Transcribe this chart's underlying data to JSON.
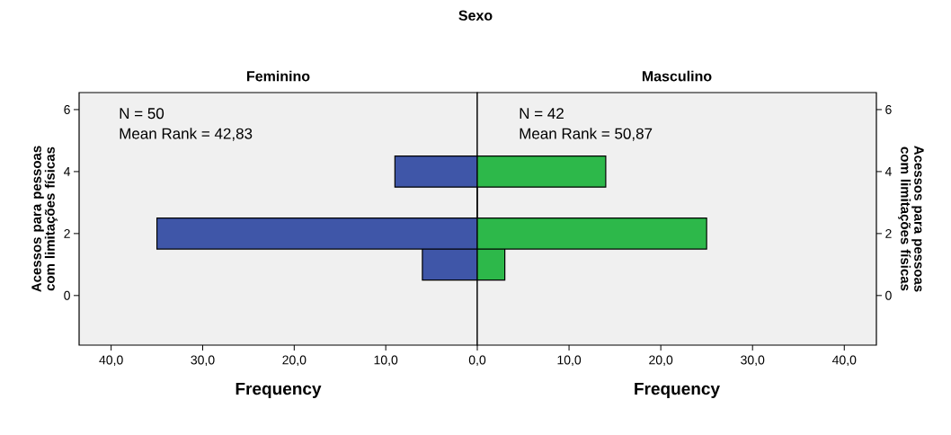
{
  "chart_data": [
    {
      "type": "histogram",
      "orientation": "horizontal",
      "title": "Sexo",
      "subtitle": "Feminino",
      "xlabel": "Frequency",
      "ylabel": "Acessos para pessoas com limitações físicas",
      "bins": [
        0.5,
        1.5,
        2.5,
        3.5,
        4.5
      ],
      "values": [
        6,
        35,
        0,
        9
      ],
      "color": "#3f56a8",
      "xlim": [
        43.5,
        0
      ],
      "ylim": [
        -1.6,
        6.55
      ],
      "xticks": [
        {
          "value": 40,
          "label": "40,0"
        },
        {
          "value": 30,
          "label": "30,0"
        },
        {
          "value": 20,
          "label": "20,0"
        },
        {
          "value": 10,
          "label": "10,0"
        },
        {
          "value": 0,
          "label": "0,0"
        }
      ],
      "yticks": [
        0,
        2,
        4,
        6
      ],
      "annotations": [
        "N = 50",
        "Mean Rank = 42,83"
      ]
    },
    {
      "type": "histogram",
      "orientation": "horizontal",
      "subtitle": "Masculino",
      "xlabel": "Frequency",
      "ylabel": "Acessos para pessoas com limitações físicas",
      "bins": [
        0.5,
        1.5,
        2.5,
        3.5,
        4.5
      ],
      "values": [
        3,
        25,
        0,
        14
      ],
      "color": "#2db84a",
      "xlim": [
        0,
        43.5
      ],
      "ylim": [
        -1.6,
        6.55
      ],
      "xticks": [
        {
          "value": 10,
          "label": "10,0"
        },
        {
          "value": 20,
          "label": "20,0"
        },
        {
          "value": 30,
          "label": "30,0"
        },
        {
          "value": 40,
          "label": "40,0"
        }
      ],
      "yticks": [
        0,
        2,
        4,
        6
      ],
      "annotations": [
        "N = 42",
        "Mean Rank = 50,87"
      ]
    }
  ]
}
